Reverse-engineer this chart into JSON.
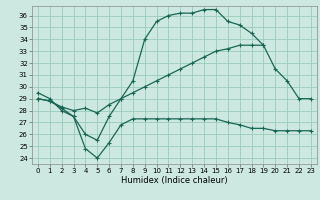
{
  "xlabel": "Humidex (Indice chaleur)",
  "bg_color": "#cce8e0",
  "grid_color": "#99ccbb",
  "line_color": "#1a6655",
  "xlim": [
    -0.5,
    23.5
  ],
  "ylim": [
    23.5,
    36.8
  ],
  "xticks": [
    0,
    1,
    2,
    3,
    4,
    5,
    6,
    7,
    8,
    9,
    10,
    11,
    12,
    13,
    14,
    15,
    16,
    17,
    18,
    19,
    20,
    21,
    22,
    23
  ],
  "yticks": [
    24,
    25,
    26,
    27,
    28,
    29,
    30,
    31,
    32,
    33,
    34,
    35,
    36
  ],
  "line1_y": [
    29.5,
    29.0,
    28.0,
    27.5,
    26.0,
    25.5,
    27.5,
    29.0,
    30.5,
    34.0,
    35.5,
    36.0,
    36.2,
    36.2,
    36.5,
    36.5,
    35.5,
    35.2,
    34.5,
    33.5,
    31.5,
    30.5,
    29.0,
    29.0
  ],
  "line2_y": [
    29.0,
    28.8,
    28.2,
    27.5,
    24.8,
    24.0,
    25.3,
    26.8,
    27.3,
    27.3,
    27.3,
    27.3,
    27.3,
    27.3,
    27.3,
    27.3,
    27.0,
    26.8,
    26.5,
    26.5,
    26.3,
    26.3,
    26.3,
    26.3
  ],
  "line3_y": [
    29.0,
    28.8,
    28.3,
    28.0,
    28.2,
    27.8,
    28.5,
    29.0,
    29.5,
    30.0,
    30.5,
    31.0,
    31.5,
    32.0,
    32.5,
    33.0,
    33.2,
    33.5,
    33.5,
    33.5,
    null,
    null,
    null,
    null
  ],
  "marker": "+",
  "markersize": 3.5,
  "linewidth": 0.9,
  "tick_fontsize": 5.0,
  "xlabel_fontsize": 6.0
}
